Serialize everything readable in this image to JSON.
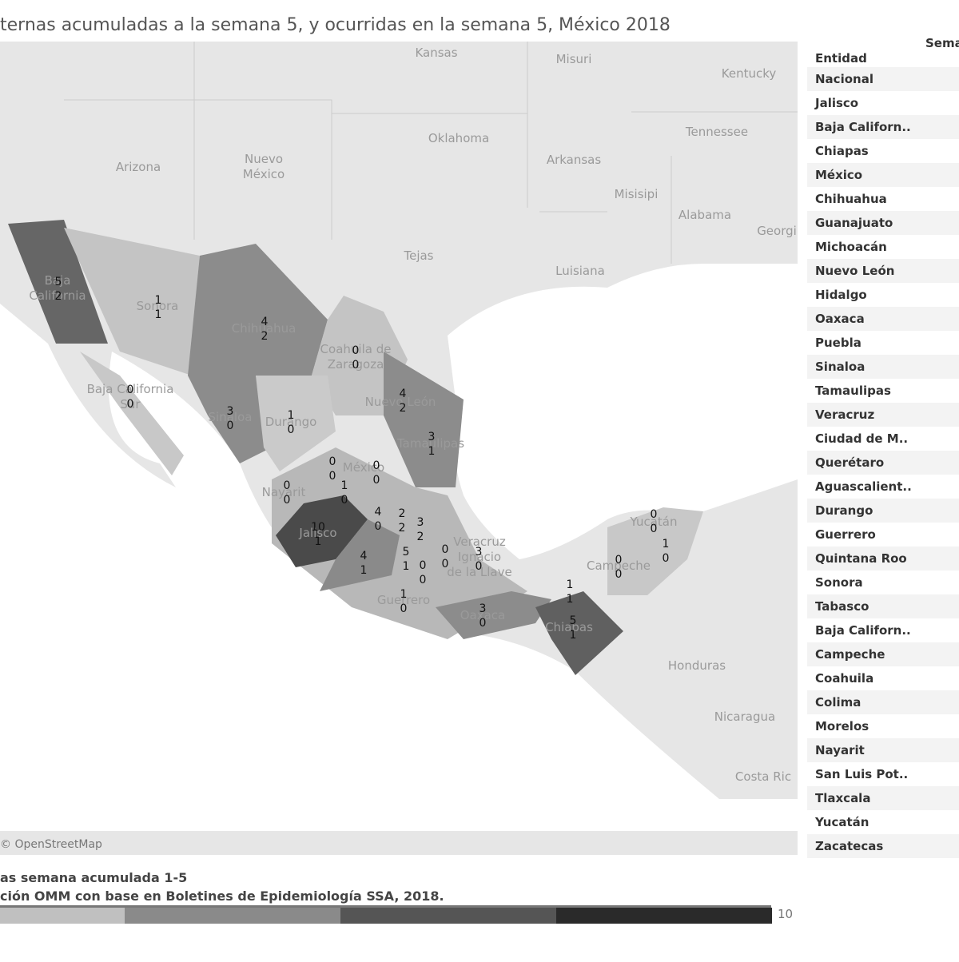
{
  "header": {
    "title": "ternas acumuladas a la semana 5, y ocurridas en la semana 5, México 2018"
  },
  "map": {
    "place_labels": [
      "Kansas",
      "Misuri",
      "Kentucky",
      "Oklahoma",
      "Tennessee",
      "Arizona",
      "Nuevo\nMéxico",
      "Arkansas",
      "Misisipi",
      "Alabama",
      "Georgi",
      "Tejas",
      "Luisiana",
      "Honduras",
      "Nicaragua",
      "Costa Ric",
      "Baja\nCalifornia",
      "Sonora",
      "Chihuahua",
      "Coahuila de\nZaragoza",
      "Baja California\nSur",
      "Nuevo León",
      "Durango",
      "Sinaloa",
      "Tamaulipas",
      "México",
      "Nayarit",
      "Jalisco",
      "Guerrero",
      "Oaxaca",
      "Chiapas",
      "Campeche",
      "Yucatán",
      "Veracruz\nIgnacio\nde la Llave"
    ],
    "state_values": [
      {
        "accumulated": 5,
        "week": 2
      },
      {
        "accumulated": 1,
        "week": 1
      },
      {
        "accumulated": 4,
        "week": 2
      },
      {
        "accumulated": 0,
        "week": 0
      },
      {
        "accumulated": 0,
        "week": 0
      },
      {
        "accumulated": 4,
        "week": 2
      },
      {
        "accumulated": 3,
        "week": 0
      },
      {
        "accumulated": 1,
        "week": 0
      },
      {
        "accumulated": 3,
        "week": 1
      },
      {
        "accumulated": 0,
        "week": 0
      },
      {
        "accumulated": 0,
        "week": 0
      },
      {
        "accumulated": 0,
        "week": 0
      },
      {
        "accumulated": 1,
        "week": 0
      },
      {
        "accumulated": 10,
        "week": 1
      },
      {
        "accumulated": 4,
        "week": 0
      },
      {
        "accumulated": 2,
        "week": 2
      },
      {
        "accumulated": 3,
        "week": 2
      },
      {
        "accumulated": 4,
        "week": 1
      },
      {
        "accumulated": 5,
        "week": 1
      },
      {
        "accumulated": 0,
        "week": 0
      },
      {
        "accumulated": 0,
        "week": 0
      },
      {
        "accumulated": 3,
        "week": 0
      },
      {
        "accumulated": 1,
        "week": 0
      },
      {
        "accumulated": 3,
        "week": 0
      },
      {
        "accumulated": 5,
        "week": 1
      },
      {
        "accumulated": 1,
        "week": 1
      },
      {
        "accumulated": 0,
        "week": 0
      },
      {
        "accumulated": 0,
        "week": 0
      },
      {
        "accumulated": 1,
        "week": 0
      }
    ],
    "attribution": "© OpenStreetMap"
  },
  "table": {
    "headers": [
      "Entidad",
      "Sema"
    ],
    "rows": [
      "Nacional",
      "Jalisco",
      "Baja Californ..",
      "Chiapas",
      "México",
      "Chihuahua",
      "Guanajuato",
      "Michoacán",
      "Nuevo León",
      "Hidalgo",
      "Oaxaca",
      "Puebla",
      "Sinaloa",
      "Tamaulipas",
      "Veracruz",
      "Ciudad de M..",
      "Querétaro",
      "Aguascalient..",
      "Durango",
      "Guerrero",
      "Quintana Roo",
      "Sonora",
      "Tabasco",
      "Baja Californ..",
      "Campeche",
      "Coahuila",
      "Colima",
      "Morelos",
      "Nayarit",
      "San Luis Pot..",
      "Tlaxcala",
      "Yucatán",
      "Zacatecas"
    ]
  },
  "footer": {
    "lines": [
      "as semana acumulada 1-5",
      "ción OMM con base en Boletines de Epidemiología SSA, 2018."
    ],
    "legend_max": 10
  }
}
